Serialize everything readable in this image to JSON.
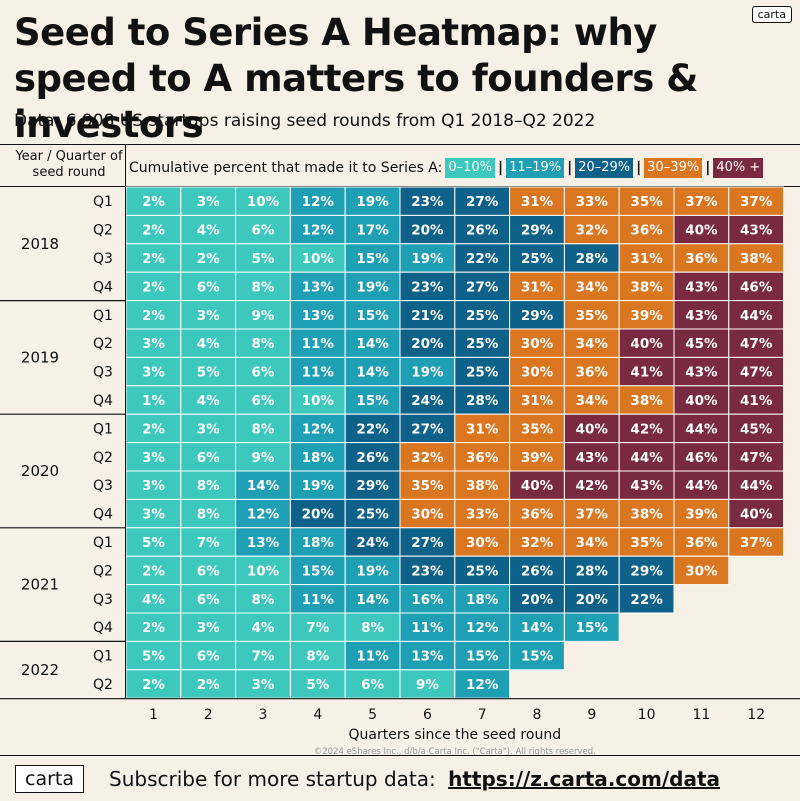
{
  "brand_tag": "carta",
  "title": "Seed to Series A Heatmap: why speed to A matters to founders & investors",
  "subtitle": "Data: 6,908 US startups raising seed rounds from Q1 2018–Q2 2022",
  "row_header": "Year / Quarter of seed round",
  "legend_label": "Cumulative percent that made it to Series A:",
  "copyright": "©2024 eShares Inc., d/b/a Carta Inc. (\"Carta\"). All rights reserved.",
  "footer": {
    "brand": "carta",
    "cta_text": "Subscribe for more startup data:",
    "cta_link": "https://z.carta.com/data"
  },
  "colors": {
    "bin_0_10": "#3cc8bd",
    "bin_11_19": "#1f9fb4",
    "bin_20_29": "#0e6188",
    "bin_30_39": "#db7620",
    "bin_40_plus": "#7a2a40",
    "background": "#f6f0e6"
  },
  "chart_data": {
    "type": "heatmap",
    "xlabel": "Quarters since the seed round",
    "x": [
      "1",
      "2",
      "3",
      "4",
      "5",
      "6",
      "7",
      "8",
      "9",
      "10",
      "11",
      "12"
    ],
    "year_groups": [
      {
        "year": "2018",
        "quarters": [
          "Q1",
          "Q2",
          "Q3",
          "Q4"
        ]
      },
      {
        "year": "2019",
        "quarters": [
          "Q1",
          "Q2",
          "Q3",
          "Q4"
        ]
      },
      {
        "year": "2020",
        "quarters": [
          "Q1",
          "Q2",
          "Q3",
          "Q4"
        ]
      },
      {
        "year": "2021",
        "quarters": [
          "Q1",
          "Q2",
          "Q3",
          "Q4"
        ]
      },
      {
        "year": "2022",
        "quarters": [
          "Q1",
          "Q2"
        ]
      }
    ],
    "legend": [
      {
        "label": "0–10%",
        "min": 0,
        "max": 10,
        "color": "#3cc8bd"
      },
      {
        "label": "11–19%",
        "min": 11,
        "max": 19,
        "color": "#1f9fb4"
      },
      {
        "label": "20–29%",
        "min": 20,
        "max": 29,
        "color": "#0e6188"
      },
      {
        "label": "30–39%",
        "min": 30,
        "max": 39,
        "color": "#db7620"
      },
      {
        "label": "40% +",
        "min": 40,
        "max": 100,
        "color": "#7a2a40"
      }
    ],
    "values": [
      [
        2,
        3,
        10,
        12,
        19,
        23,
        27,
        31,
        33,
        35,
        37,
        37
      ],
      [
        2,
        4,
        6,
        12,
        17,
        20,
        26,
        29,
        32,
        36,
        40,
        43
      ],
      [
        2,
        2,
        5,
        10,
        15,
        19,
        22,
        25,
        28,
        31,
        36,
        38
      ],
      [
        2,
        6,
        8,
        13,
        19,
        23,
        27,
        31,
        34,
        38,
        43,
        46
      ],
      [
        2,
        3,
        9,
        13,
        15,
        21,
        25,
        29,
        35,
        39,
        43,
        44
      ],
      [
        3,
        4,
        8,
        11,
        14,
        20,
        25,
        30,
        34,
        40,
        45,
        47
      ],
      [
        3,
        5,
        6,
        11,
        14,
        19,
        25,
        30,
        36,
        41,
        43,
        47
      ],
      [
        1,
        4,
        6,
        10,
        15,
        24,
        28,
        31,
        34,
        38,
        40,
        41
      ],
      [
        2,
        3,
        8,
        12,
        22,
        27,
        31,
        35,
        40,
        42,
        44,
        45
      ],
      [
        3,
        6,
        9,
        18,
        26,
        32,
        36,
        39,
        43,
        44,
        46,
        47
      ],
      [
        3,
        8,
        14,
        19,
        29,
        35,
        38,
        40,
        42,
        43,
        44,
        44
      ],
      [
        3,
        8,
        12,
        20,
        25,
        30,
        33,
        36,
        37,
        38,
        39,
        40
      ],
      [
        5,
        7,
        13,
        18,
        24,
        27,
        30,
        32,
        34,
        35,
        36,
        37
      ],
      [
        2,
        6,
        10,
        15,
        19,
        23,
        25,
        26,
        28,
        29,
        30
      ],
      [
        4,
        6,
        8,
        11,
        14,
        16,
        18,
        20,
        20,
        22
      ],
      [
        2,
        3,
        4,
        7,
        8,
        11,
        12,
        14,
        15
      ],
      [
        5,
        6,
        7,
        8,
        11,
        13,
        15,
        15
      ],
      [
        2,
        2,
        3,
        5,
        6,
        9,
        12
      ]
    ]
  }
}
